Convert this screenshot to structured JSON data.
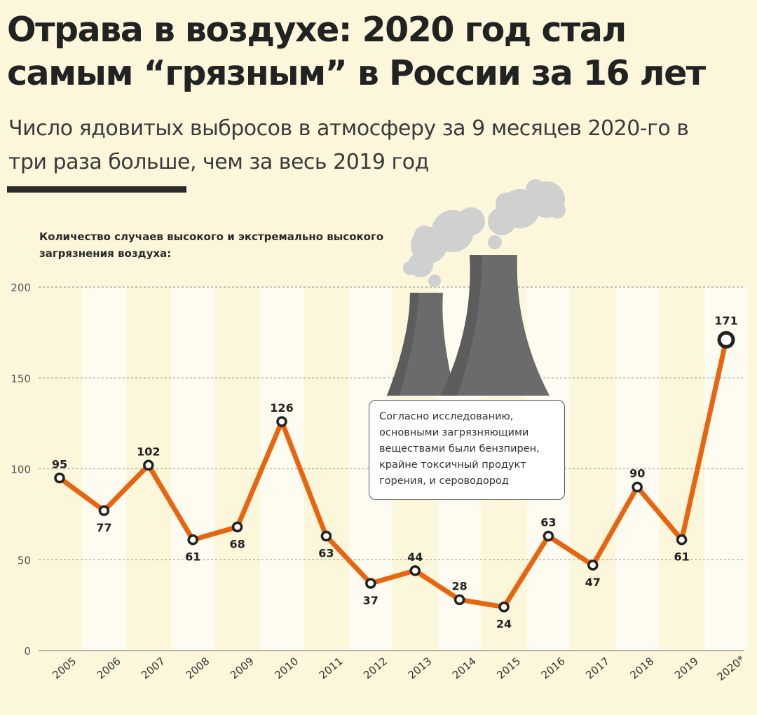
{
  "title": "Отрава в воздухе: 2020 год стал самым “грязным” в России за 16 лет",
  "subtitle": "Число ядовитых выбросов в атмосферу за 9 месяцев 2020-го в три раза больше, чем за весь 2019 год",
  "note": "Согласно исследованию, основными загрязняющими веществами были бензпирен, крайне токсичный продукт горения, и сероводород",
  "colors": {
    "background": "#fcf6db",
    "stripe": "#fefcf1",
    "line": "#e8650f",
    "marker": "#222222",
    "smokestack": "#6b6b6b",
    "smoke": "#d0d0d0"
  },
  "chart_data": {
    "type": "line",
    "ylabel": "Количество случаев высокого и экстремально высокого загрязнения воздуха:",
    "xlabel": "",
    "categories": [
      "2005",
      "2006",
      "2007",
      "2008",
      "2009",
      "2010",
      "2011",
      "2012",
      "2013",
      "2014",
      "2015",
      "2016",
      "2017",
      "2018",
      "2019",
      "2020*"
    ],
    "series": [
      {
        "values": [
          95,
          77,
          102,
          61,
          68,
          126,
          63,
          37,
          44,
          28,
          24,
          63,
          47,
          90,
          61,
          171
        ]
      }
    ],
    "ylim": [
      0,
      200
    ],
    "yticks": [
      0,
      50,
      100,
      150,
      200
    ],
    "label_positions": [
      "above",
      "below",
      "above",
      "below",
      "below",
      "above",
      "below",
      "below",
      "above",
      "above",
      "below",
      "above",
      "below",
      "above",
      "below",
      "above"
    ],
    "grid": true
  }
}
